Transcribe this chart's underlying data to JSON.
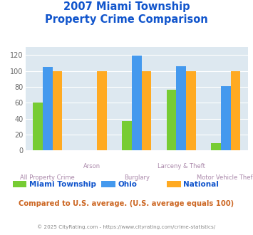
{
  "title_line1": "2007 Miami Township",
  "title_line2": "Property Crime Comparison",
  "categories": [
    "All Property Crime",
    "Arson",
    "Burglary",
    "Larceny & Theft",
    "Motor Vehicle Theft"
  ],
  "series": {
    "Miami Township": [
      60,
      0,
      37,
      76,
      9
    ],
    "Ohio": [
      105,
      0,
      119,
      106,
      81
    ],
    "National": [
      100,
      100,
      100,
      100,
      100
    ]
  },
  "colors": {
    "Miami Township": "#77cc33",
    "Ohio": "#4499ee",
    "National": "#ffaa22"
  },
  "ylim": [
    0,
    130
  ],
  "yticks": [
    0,
    20,
    40,
    60,
    80,
    100,
    120
  ],
  "plot_bg": "#dde8f0",
  "title_color": "#1155cc",
  "axis_label_color": "#aa88aa",
  "legend_label_color": "#1155cc",
  "subtitle_text": "Compared to U.S. average. (U.S. average equals 100)",
  "subtitle_color": "#cc6622",
  "footer_text": "© 2025 CityRating.com - https://www.cityrating.com/crime-statistics/",
  "footer_color": "#888888",
  "bar_width": 0.22
}
